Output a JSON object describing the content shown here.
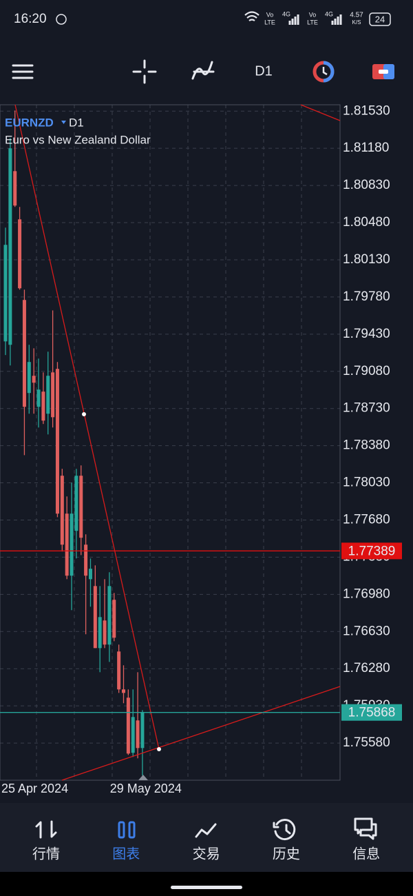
{
  "status_bar": {
    "time": "16:20",
    "network_labels": [
      "Vo",
      "LTE",
      "4G",
      "Vo",
      "LTE",
      "4G"
    ],
    "speed": "4.57",
    "speed_unit": "K/S",
    "battery": "24"
  },
  "toolbar": {
    "timeframe": "D1"
  },
  "chart_data": {
    "type": "candlestick",
    "symbol": "EURNZD",
    "timeframe": "D1",
    "description": "Euro vs New Zealand Dollar",
    "categories": [
      "25 Apr 2024",
      null,
      null,
      null,
      null,
      null,
      null,
      null,
      null,
      null,
      null,
      null,
      null,
      null,
      null,
      null,
      null,
      null,
      null,
      null,
      null,
      null,
      null,
      "29 May 2024",
      null,
      null,
      null,
      null,
      null,
      null
    ],
    "open": [
      1.79362,
      1.7933,
      1.80965,
      1.80511,
      1.79752,
      1.78876,
      1.79038,
      1.78746,
      1.78889,
      1.78681,
      1.7907,
      1.79103,
      1.78097,
      1.7774,
      1.77156,
      1.77578,
      1.78097,
      1.77448,
      1.77123,
      1.77058,
      1.76474,
      1.76734,
      1.76507,
      1.76929,
      1.76442,
      1.76085,
      1.76007,
      1.75488,
      1.75793,
      1.75533
    ],
    "high": [
      1.80433,
      1.81277,
      1.81536,
      1.80628,
      1.79849,
      1.7933,
      1.79297,
      1.792,
      1.7907,
      1.79265,
      1.79654,
      1.79168,
      1.78162,
      1.77902,
      1.78032,
      1.78162,
      1.78194,
      1.77545,
      1.77318,
      1.77253,
      1.77058,
      1.77123,
      1.77188,
      1.76993,
      1.76507,
      1.76312,
      1.76085,
      1.76085,
      1.76247,
      1.7589
    ],
    "low": [
      1.79233,
      1.79135,
      1.80628,
      1.79849,
      1.78291,
      1.78681,
      1.78681,
      1.78551,
      1.78584,
      1.78486,
      1.78551,
      1.77707,
      1.77383,
      1.77123,
      1.76831,
      1.77318,
      1.7735,
      1.76604,
      1.76864,
      1.76474,
      1.76247,
      1.76474,
      1.76344,
      1.76539,
      1.76052,
      1.75955,
      1.75468,
      1.75449,
      1.75436,
      1.75274
    ],
    "close": [
      1.80271,
      1.8118,
      1.80641,
      1.79862,
      1.78746,
      1.79168,
      1.78973,
      1.78908,
      1.78616,
      1.79038,
      1.78648,
      1.7774,
      1.77448,
      1.77156,
      1.7774,
      1.78097,
      1.77513,
      1.77156,
      1.77221,
      1.76474,
      1.76766,
      1.76507,
      1.77058,
      1.76572,
      1.76085,
      1.76052,
      1.75481,
      1.75825,
      1.75533,
      1.75868
    ],
    "up_color": "#26a69a",
    "down_color": "#e0605e",
    "ylim": [
      1.7523,
      1.8159
    ],
    "yticks": [
      {
        "value": 1.8153,
        "label": "1.81530"
      },
      {
        "value": 1.8118,
        "label": "1.81180"
      },
      {
        "value": 1.8083,
        "label": "1.80830"
      },
      {
        "value": 1.8048,
        "label": "1.80480"
      },
      {
        "value": 1.8013,
        "label": "1.80130"
      },
      {
        "value": 1.7978,
        "label": "1.79780"
      },
      {
        "value": 1.7943,
        "label": "1.79430"
      },
      {
        "value": 1.7908,
        "label": "1.79080"
      },
      {
        "value": 1.7873,
        "label": "1.78730"
      },
      {
        "value": 1.7838,
        "label": "1.78380"
      },
      {
        "value": 1.7803,
        "label": "1.78030"
      },
      {
        "value": 1.7768,
        "label": "1.77680"
      },
      {
        "value": 1.7733,
        "label": "1.77330"
      },
      {
        "value": 1.7698,
        "label": "1.76980"
      },
      {
        "value": 1.7663,
        "label": "1.76630"
      },
      {
        "value": 1.7628,
        "label": "1.76280"
      },
      {
        "value": 1.7593,
        "label": "1.75930"
      },
      {
        "value": 1.7558,
        "label": "1.75580"
      }
    ],
    "price_lines": [
      {
        "value": 1.77389,
        "color": "#e01010"
      },
      {
        "value": 1.75868,
        "color": "#26a69a"
      }
    ],
    "grid": true
  },
  "bottom_nav": {
    "items": [
      "行情",
      "图表",
      "交易",
      "历史",
      "信息"
    ],
    "active": 1
  }
}
